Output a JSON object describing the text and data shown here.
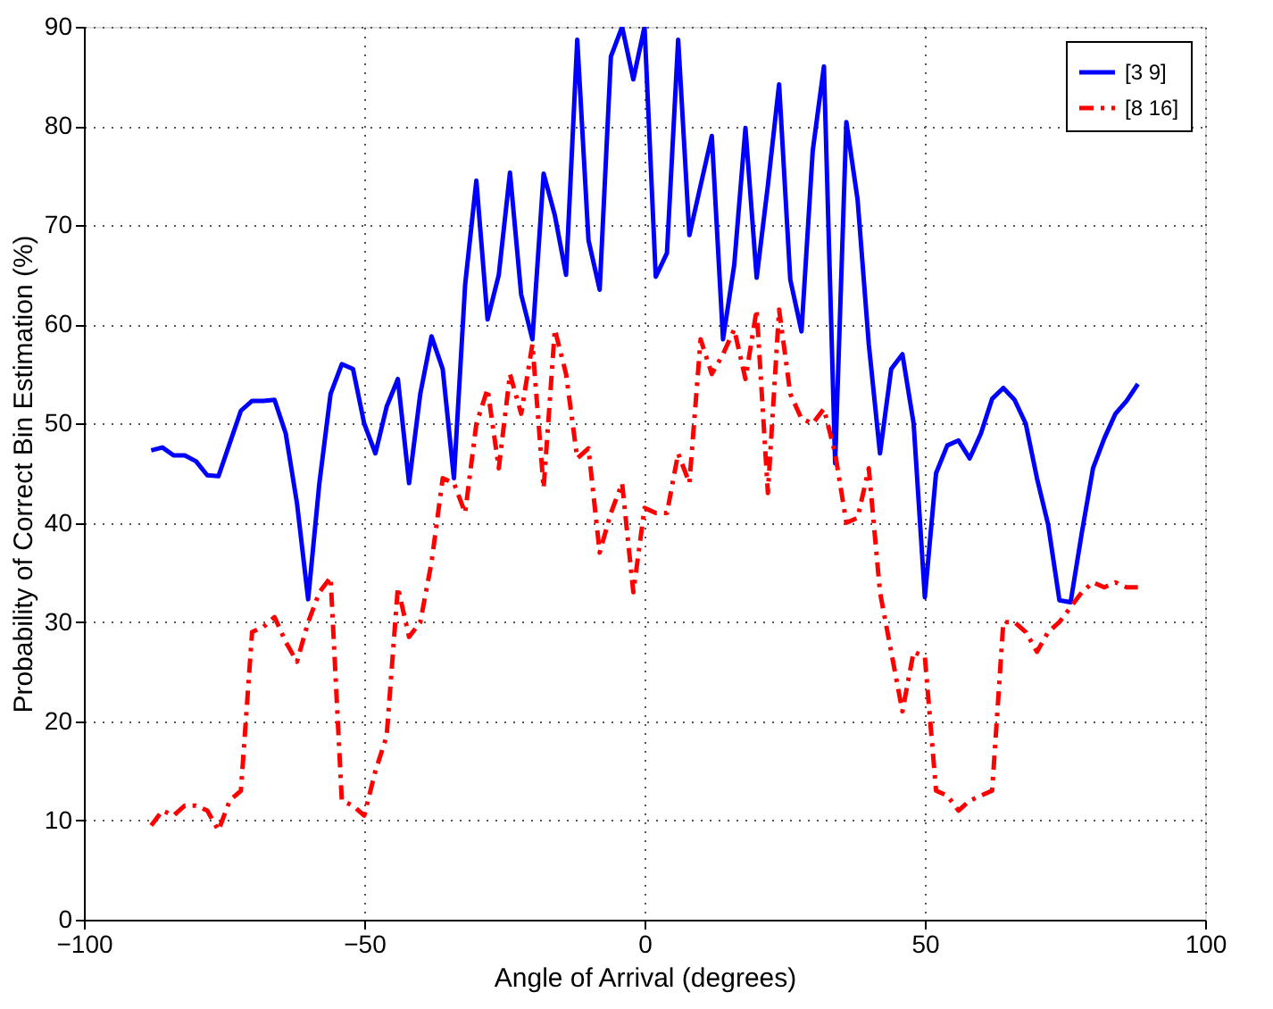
{
  "chart_data": {
    "type": "line",
    "xlabel": "Angle of Arrival (degrees)",
    "ylabel": "Probability of Correct Bin Estimation (%)",
    "x": [
      -88,
      -86,
      -84,
      -82,
      -80,
      -78,
      -76,
      -74,
      -72,
      -70,
      -68,
      -66,
      -64,
      -62,
      -60,
      -58,
      -56,
      -54,
      -52,
      -50,
      -48,
      -46,
      -44,
      -42,
      -40,
      -38,
      -36,
      -34,
      -32,
      -30,
      -28,
      -26,
      -24,
      -22,
      -20,
      -18,
      -16,
      -14,
      -12,
      -10,
      -8,
      -6,
      -4,
      -2,
      0,
      2,
      4,
      6,
      8,
      10,
      12,
      14,
      16,
      18,
      20,
      22,
      24,
      26,
      28,
      30,
      32,
      34,
      36,
      38,
      40,
      42,
      44,
      46,
      48,
      50,
      52,
      54,
      56,
      58,
      60,
      62,
      64,
      66,
      68,
      70,
      72,
      74,
      76,
      78,
      80,
      82,
      84,
      86,
      88
    ],
    "series": [
      {
        "name": "[3 9]",
        "color": "#0000ff",
        "line_style": "solid",
        "values": [
          47.3,
          47.6,
          46.8,
          46.8,
          46.2,
          44.8,
          44.7,
          48,
          51.3,
          52.3,
          52.3,
          52.4,
          49,
          42,
          32.3,
          44,
          53,
          56,
          55.5,
          50,
          47,
          51.7,
          54.5,
          44,
          53,
          58.8,
          55.5,
          44.5,
          64,
          74.5,
          60.5,
          65,
          75.3,
          63,
          58.5,
          75.2,
          71,
          65,
          88.7,
          68.5,
          63.5,
          87,
          90,
          84.7,
          90,
          64.8,
          67.2,
          88.7,
          69,
          74,
          79,
          58.5,
          66,
          79.8,
          64.7,
          74,
          84.2,
          64.5,
          59.3,
          77.5,
          86,
          46,
          80.4,
          72.6,
          58,
          47,
          55.5,
          57,
          50,
          32.5,
          45,
          47.8,
          48.3,
          46.5,
          49,
          52.5,
          53.6,
          52.4,
          50,
          44.5,
          39.8,
          32.2,
          32,
          39,
          45.5,
          48.5,
          51,
          52.3,
          54
        ]
      },
      {
        "name": "[8 16]",
        "color": "#ff0000",
        "line_style": "dashed",
        "values": [
          9.5,
          11,
          10.5,
          11.5,
          11.5,
          11,
          9,
          12,
          13,
          29,
          29.5,
          30.5,
          28,
          26,
          30,
          33,
          34.5,
          12,
          11.5,
          10.5,
          15,
          18.5,
          33.5,
          28.5,
          30,
          36,
          44.5,
          44,
          41,
          50,
          53.5,
          45.5,
          55,
          51,
          58,
          43.5,
          59.5,
          55,
          46.5,
          47.5,
          37,
          41,
          44,
          33,
          41.5,
          41,
          41,
          47,
          44,
          58.5,
          55,
          57,
          59.5,
          54.5,
          61.5,
          43,
          61.5,
          53,
          50.5,
          50,
          51.5,
          47,
          40,
          40.5,
          45.5,
          33,
          27,
          21,
          27,
          26.5,
          13,
          12.5,
          11,
          12,
          12.5,
          13,
          30,
          30,
          29,
          27,
          29,
          30,
          31.5,
          33,
          34,
          33.5,
          34,
          33.5,
          33.5
        ]
      }
    ],
    "xlim": [
      -100,
      100
    ],
    "xticks": [
      -100,
      -50,
      0,
      50,
      100
    ],
    "ylim": [
      0,
      90
    ],
    "yticks": [
      0,
      10,
      20,
      30,
      40,
      50,
      60,
      70,
      80,
      90
    ],
    "grid": true,
    "legend": "top right",
    "marker": "none"
  }
}
